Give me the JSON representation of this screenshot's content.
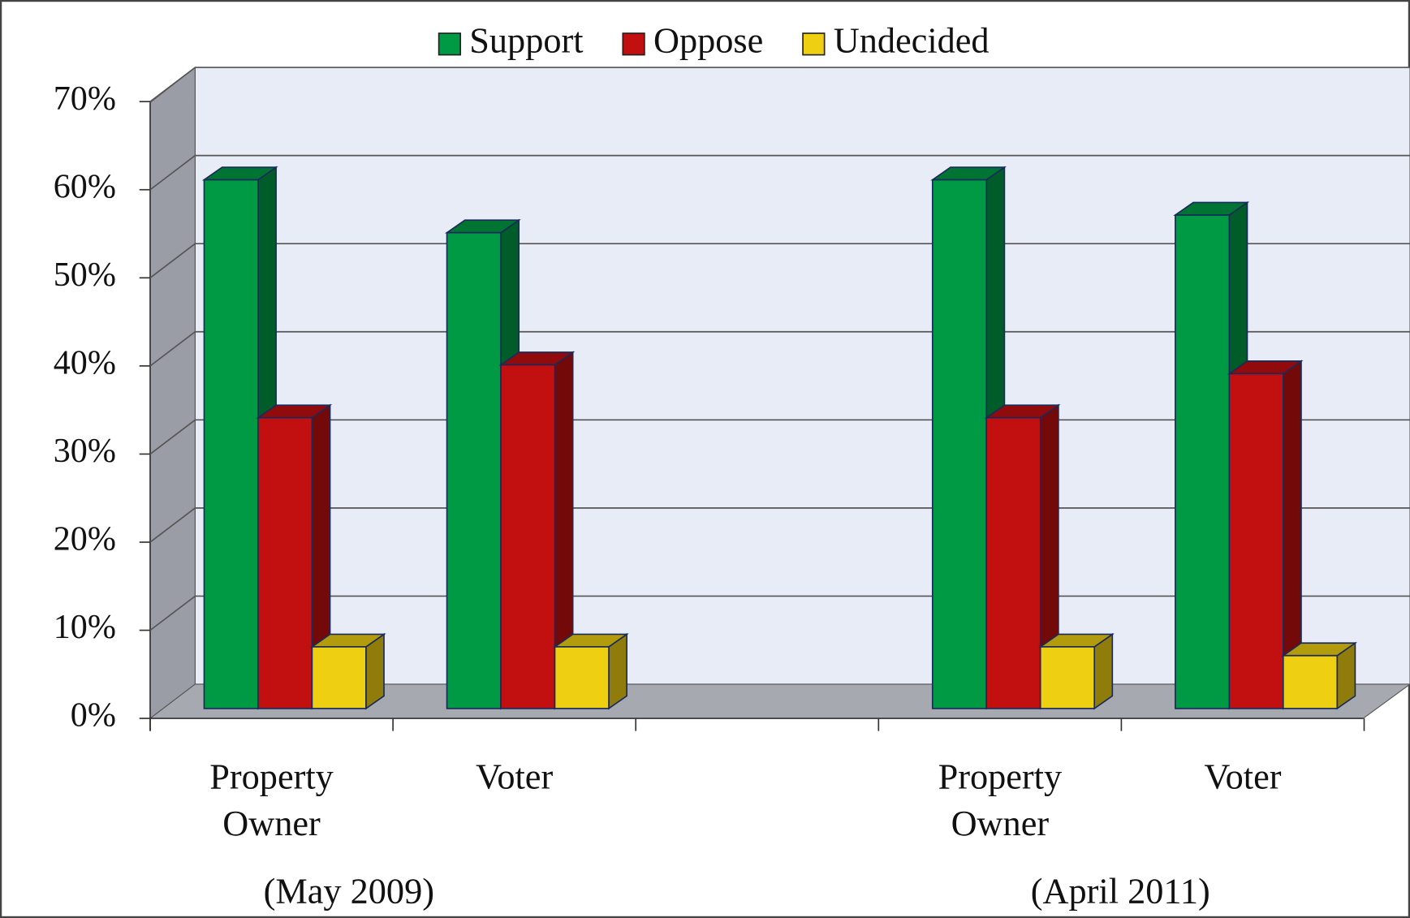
{
  "chart_data": {
    "type": "bar3d",
    "categories": [
      "Property Owner",
      "Voter",
      null,
      "Property Owner",
      "Voter"
    ],
    "groups": [
      "(May 2009)",
      "(April 2011)"
    ],
    "series": [
      {
        "name": "Support",
        "color": "#009a44",
        "values": [
          60,
          54,
          null,
          60,
          56
        ]
      },
      {
        "name": "Oppose",
        "color": "#c20f10",
        "values": [
          33,
          39,
          null,
          33,
          38
        ]
      },
      {
        "name": "Undecided",
        "color": "#efcf12",
        "values": [
          7,
          7,
          null,
          7,
          6
        ]
      }
    ],
    "ylim": [
      0,
      70
    ],
    "yticks": [
      {
        "value": 0,
        "label": "0%"
      },
      {
        "value": 10,
        "label": "10%"
      },
      {
        "value": 20,
        "label": "20%"
      },
      {
        "value": 30,
        "label": "30%"
      },
      {
        "value": 40,
        "label": "40%"
      },
      {
        "value": 50,
        "label": "50%"
      },
      {
        "value": 60,
        "label": "60%"
      },
      {
        "value": 70,
        "label": "70%"
      }
    ],
    "grid": true,
    "legend": "top"
  }
}
